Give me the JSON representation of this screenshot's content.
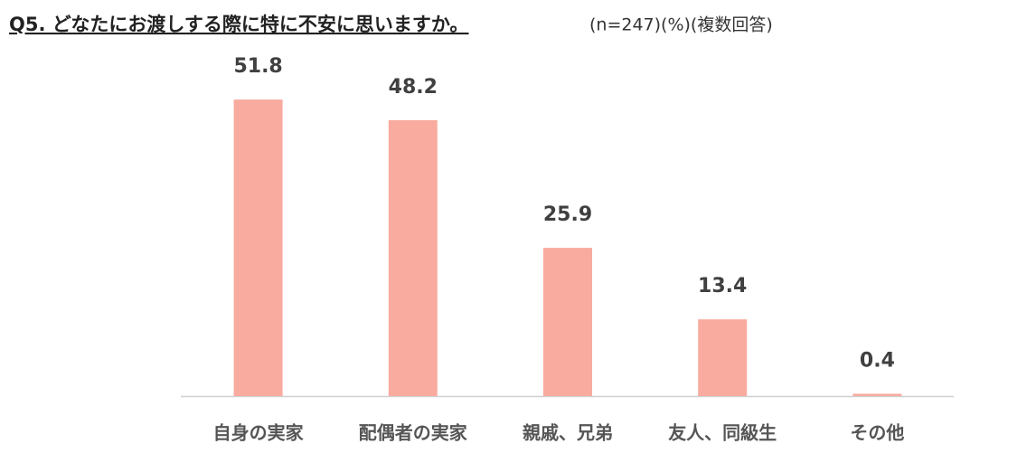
{
  "chart_data": {
    "type": "bar",
    "title": "Q5. どなたにお渡しする際に特に不安に思いますか。",
    "subtitle": "(n=247)(%)(複数回答)",
    "categories": [
      "自身の実家",
      "配偶者の実家",
      "親戚、兄弟",
      "友人、同級生",
      "その他"
    ],
    "values": [
      51.8,
      48.2,
      25.9,
      13.4,
      0.4
    ],
    "color": "#f9aba0"
  }
}
